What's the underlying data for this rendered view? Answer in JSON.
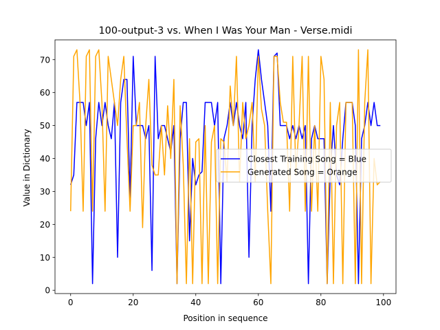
{
  "chart_data": {
    "type": "line",
    "title": "100-output-3 vs. When I Was Your Man - Verse.midi",
    "xlabel": "Position in sequence",
    "ylabel": "Value in Dictionary",
    "xlim": [
      -5,
      104
    ],
    "ylim": [
      -1,
      76
    ],
    "xticks": [
      0,
      20,
      40,
      60,
      80,
      100
    ],
    "yticks": [
      0,
      10,
      20,
      30,
      40,
      50,
      60,
      70
    ],
    "grid": false,
    "legend_position": "center-right",
    "series": [
      {
        "name": "Closest Training Song = Blue",
        "color": "#0000ff",
        "x": [
          0,
          1,
          2,
          3,
          4,
          5,
          6,
          7,
          8,
          9,
          10,
          11,
          12,
          13,
          14,
          15,
          16,
          17,
          18,
          19,
          20,
          21,
          22,
          23,
          24,
          25,
          26,
          27,
          28,
          29,
          30,
          31,
          32,
          33,
          34,
          35,
          36,
          37,
          38,
          39,
          40,
          41,
          42,
          43,
          44,
          45,
          46,
          47,
          48,
          49,
          50,
          51,
          52,
          53,
          54,
          55,
          56,
          57,
          58,
          59,
          60,
          61,
          62,
          63,
          64,
          65,
          66,
          67,
          68,
          69,
          70,
          71,
          72,
          73,
          74,
          75,
          76,
          77,
          78,
          79,
          80,
          81,
          82,
          83,
          84,
          85,
          86,
          87,
          88,
          89,
          90,
          91,
          92,
          93,
          94,
          95,
          96,
          97,
          98,
          99
        ],
        "values": [
          32,
          35,
          57,
          57,
          57,
          50,
          57,
          2,
          46,
          57,
          50,
          57,
          50,
          46,
          57,
          10,
          57,
          64,
          64,
          28,
          71,
          50,
          50,
          50,
          46,
          50,
          6,
          71,
          46,
          50,
          50,
          46,
          42,
          50,
          2,
          46,
          57,
          57,
          15,
          40,
          32,
          35,
          36,
          57,
          57,
          57,
          50,
          57,
          2,
          46,
          50,
          57,
          50,
          57,
          50,
          46,
          57,
          10,
          50,
          64,
          73,
          64,
          57,
          50,
          24,
          71,
          72,
          50,
          50,
          50,
          46,
          50,
          46,
          50,
          46,
          50,
          2,
          46,
          50,
          46,
          46,
          46,
          2,
          36,
          50,
          35,
          32,
          46,
          57,
          57,
          57,
          50,
          2,
          46,
          50,
          57,
          50,
          57,
          50,
          50
        ]
      },
      {
        "name": "Generated Song = Orange",
        "color": "#ffa500",
        "x": [
          0,
          1,
          2,
          3,
          4,
          5,
          6,
          7,
          8,
          9,
          10,
          11,
          12,
          13,
          14,
          15,
          16,
          17,
          18,
          19,
          20,
          21,
          22,
          23,
          24,
          25,
          26,
          27,
          28,
          29,
          30,
          31,
          32,
          33,
          34,
          35,
          36,
          37,
          38,
          39,
          40,
          41,
          42,
          43,
          44,
          45,
          46,
          47,
          48,
          49,
          50,
          51,
          52,
          53,
          54,
          55,
          56,
          57,
          58,
          59,
          60,
          61,
          62,
          63,
          64,
          65,
          66,
          67,
          68,
          69,
          70,
          71,
          72,
          73,
          74,
          75,
          76,
          77,
          78,
          79,
          80,
          81,
          82,
          83,
          84,
          85,
          86,
          87,
          88,
          89,
          90,
          91,
          92,
          93,
          94,
          95,
          96,
          97,
          98,
          99
        ],
        "values": [
          24,
          71,
          73,
          57,
          24,
          71,
          73,
          24,
          71,
          73,
          57,
          24,
          71,
          64,
          57,
          50,
          64,
          71,
          46,
          24,
          50,
          50,
          57,
          19,
          50,
          64,
          38,
          35,
          35,
          50,
          35,
          56,
          40,
          64,
          2,
          56,
          38,
          2,
          46,
          2,
          45,
          46,
          2,
          50,
          2,
          45,
          50,
          2,
          46,
          45,
          33,
          62,
          50,
          71,
          33,
          57,
          46,
          50,
          57,
          33,
          71,
          55,
          50,
          24,
          2,
          71,
          71,
          57,
          51,
          51,
          24,
          71,
          35,
          50,
          71,
          24,
          71,
          24,
          50,
          24,
          71,
          64,
          2,
          57,
          2,
          50,
          57,
          2,
          57,
          57,
          57,
          2,
          73,
          2,
          57,
          73,
          2,
          40,
          32,
          33
        ]
      }
    ]
  }
}
